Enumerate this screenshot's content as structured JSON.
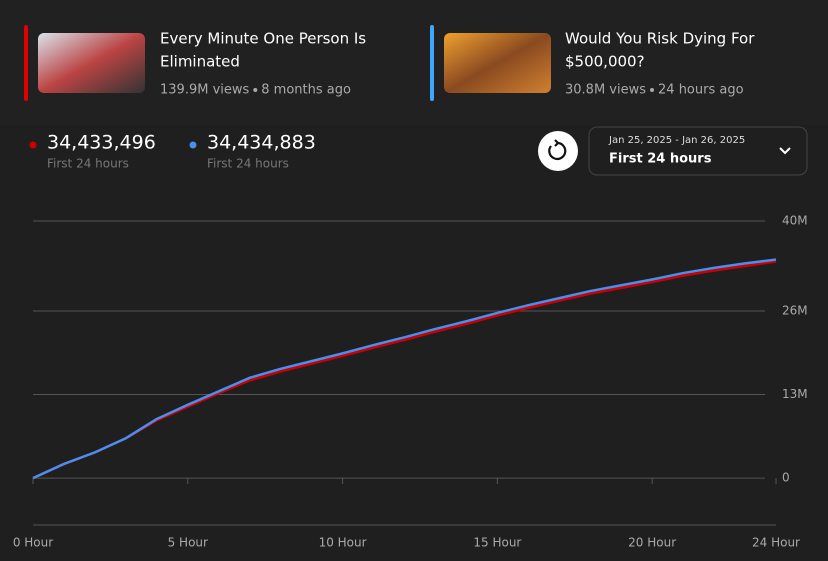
{
  "videos": [
    {
      "title_lines": [
        "Every Minute One Person Is",
        "Eliminated"
      ],
      "views": "139.9M views",
      "age": "8 months ago",
      "color": "#e00000"
    },
    {
      "title_lines": [
        "Would You Risk Dying For",
        "$500,000?"
      ],
      "views": "30.8M views",
      "age": "24 hours ago",
      "color": "#3ea6ff"
    }
  ],
  "stats": [
    {
      "value": "34,433,496",
      "caption": "First 24 hours"
    },
    {
      "value": "34,434,883",
      "caption": "First 24 hours"
    }
  ],
  "range_picker": {
    "dates": "Jan 25, 2025 - Jan 26, 2025",
    "label": "First 24 hours"
  },
  "chart_data": {
    "type": "line",
    "x": [
      0,
      1,
      2,
      3,
      4,
      5,
      6,
      7,
      8,
      9,
      10,
      11,
      12,
      13,
      14,
      15,
      16,
      17,
      18,
      19,
      20,
      21,
      22,
      23,
      24
    ],
    "xticks": [
      {
        "value": 0,
        "label": "0 Hour"
      },
      {
        "value": 5,
        "label": "5 Hour"
      },
      {
        "value": 10,
        "label": "10 Hour"
      },
      {
        "value": 15,
        "label": "15 Hour"
      },
      {
        "value": 20,
        "label": "20 Hour"
      },
      {
        "value": 24,
        "label": "24 Hour"
      }
    ],
    "xlim": [
      0,
      24
    ],
    "ylim": [
      -7300000,
      40000000
    ],
    "yticks": [
      {
        "value": 0,
        "label": "0"
      },
      {
        "value": 13000000,
        "label": "13M"
      },
      {
        "value": 26000000,
        "label": "26M"
      },
      {
        "value": 40000000,
        "label": "40M"
      }
    ],
    "grid": true,
    "series": [
      {
        "name": "Every Minute One Person Is Eliminated",
        "color": "#cc0000",
        "values": [
          0,
          2200000,
          4000000,
          6200000,
          9000000,
          11100000,
          13200000,
          15200000,
          16600000,
          17800000,
          19000000,
          20300000,
          21500000,
          22800000,
          24000000,
          25300000,
          26500000,
          27600000,
          28700000,
          29600000,
          30500000,
          31500000,
          32300000,
          33000000,
          33700000
        ]
      },
      {
        "name": "Would You Risk Dying For $500,000?",
        "color": "#4a8ef0",
        "values": [
          0,
          2200000,
          4000000,
          6200000,
          9200000,
          11400000,
          13500000,
          15600000,
          17000000,
          18200000,
          19400000,
          20700000,
          21900000,
          23200000,
          24400000,
          25700000,
          26900000,
          28000000,
          29100000,
          30000000,
          30900000,
          31900000,
          32700000,
          33400000,
          34000000
        ]
      }
    ]
  }
}
